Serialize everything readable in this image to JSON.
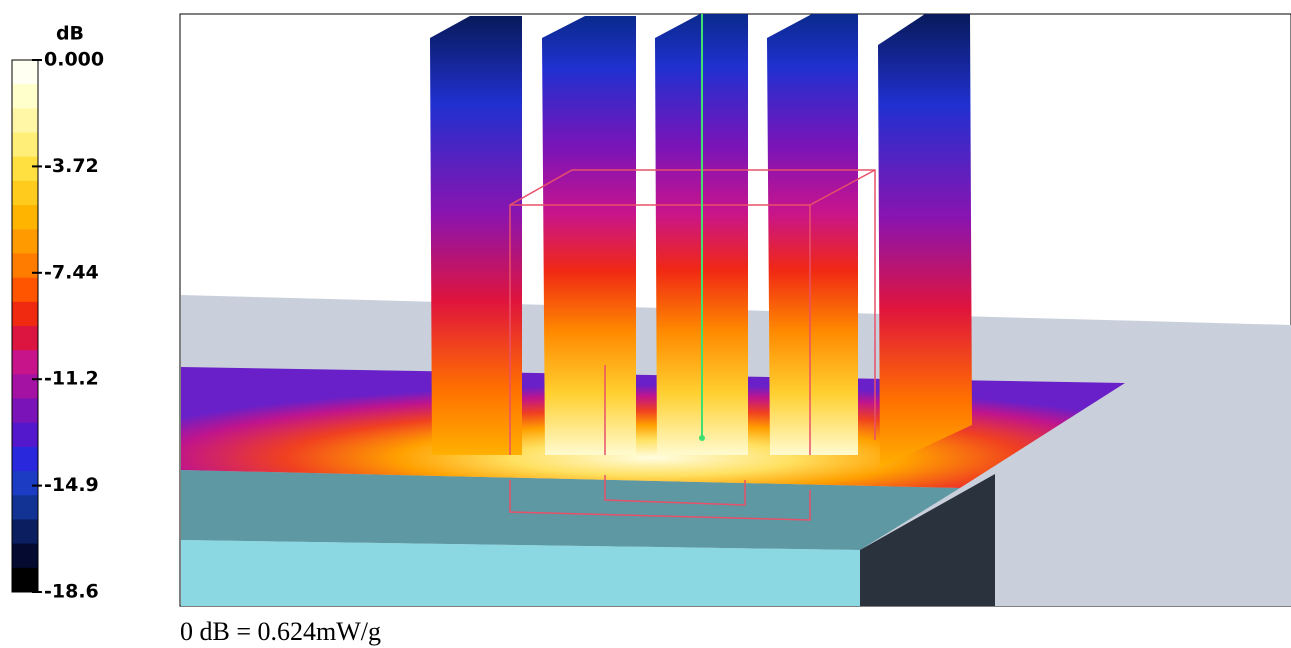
{
  "colorbar": {
    "unit": "dB",
    "tick_labels": [
      "0.000",
      "-3.72",
      "-7.44",
      "-11.2",
      "-14.9",
      "-18.6"
    ]
  },
  "footer": "0 dB = 0.624mW/g"
}
